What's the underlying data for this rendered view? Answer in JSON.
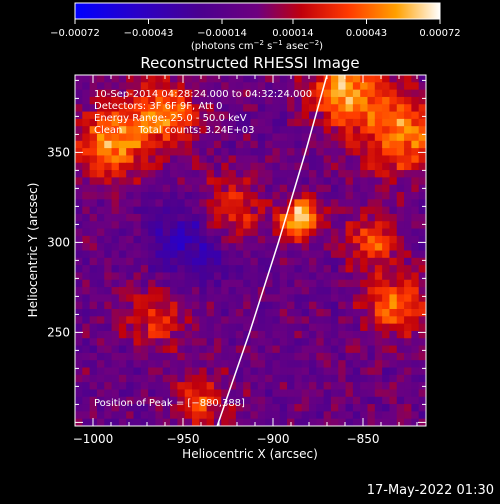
{
  "chart_data": {
    "type": "heatmap",
    "title": "Reconstructed RHESSI Image",
    "xlabel": "Heliocentric X (arcsec)",
    "ylabel": "Heliocentric Y (arcsec)",
    "xlim": [
      -1010,
      -815
    ],
    "ylim": [
      198,
      393
    ],
    "x_ticks": [
      {
        "value": -1000,
        "label": "−1000"
      },
      {
        "value": -950,
        "label": "−950"
      },
      {
        "value": -900,
        "label": "−900"
      },
      {
        "value": -850,
        "label": "−850"
      }
    ],
    "y_ticks": [
      {
        "value": 250,
        "label": "250"
      },
      {
        "value": 300,
        "label": "300"
      },
      {
        "value": 350,
        "label": "350"
      }
    ],
    "colorbar": {
      "min": -0.00072,
      "max": 0.00072,
      "ticks": [
        {
          "value": -0.00072,
          "label": "−0.00072"
        },
        {
          "value": -0.00043,
          "label": "−0.00043"
        },
        {
          "value": -0.00014,
          "label": "−0.00014"
        },
        {
          "value": 0.00014,
          "label": "0.00014"
        },
        {
          "value": 0.00043,
          "label": "0.00043"
        },
        {
          "value": 0.00072,
          "label": "0.00072"
        }
      ],
      "units_prefix": "(photons cm",
      "units_exp1": "−2",
      "units_mid": " s",
      "units_exp2": "−1",
      "units_mid2": " asec",
      "units_exp3": "−2",
      "units_suffix": ")"
    },
    "annotations": [
      "10-Sep-2014 04:28:24.000 to 04:32:24.000",
      "Detectors: 3F 6F 9F, Att 0",
      "Energy Range: 25.0 - 50.0 keV",
      "Clean     Total counts: 3.24E+03"
    ],
    "peak_label": "Position of Peak = [−880,388]",
    "peak": {
      "x": -880,
      "y": 388
    },
    "limb_curve": [
      {
        "x": -931,
        "y": 198
      },
      {
        "x": -913,
        "y": 250
      },
      {
        "x": -897,
        "y": 300
      },
      {
        "x": -882,
        "y": 350
      },
      {
        "x": -870,
        "y": 393
      }
    ],
    "sources": [
      {
        "x": -885,
        "y": 313,
        "amp": 0.00072,
        "sigma": 8
      },
      {
        "x": -925,
        "y": 318,
        "amp": 0.00045,
        "sigma": 12
      },
      {
        "x": -990,
        "y": 355,
        "amp": 0.00055,
        "sigma": 14
      },
      {
        "x": -960,
        "y": 372,
        "amp": 0.0005,
        "sigma": 14
      },
      {
        "x": -860,
        "y": 385,
        "amp": 0.0006,
        "sigma": 14
      },
      {
        "x": -828,
        "y": 360,
        "amp": 0.00055,
        "sigma": 16
      },
      {
        "x": -832,
        "y": 265,
        "amp": 0.0005,
        "sigma": 12
      },
      {
        "x": -845,
        "y": 300,
        "amp": 0.00045,
        "sigma": 10
      },
      {
        "x": -940,
        "y": 212,
        "amp": 0.0004,
        "sigma": 10
      },
      {
        "x": -965,
        "y": 258,
        "amp": 0.00035,
        "sigma": 12
      },
      {
        "x": -945,
        "y": 300,
        "amp": -0.00035,
        "sigma": 16
      }
    ],
    "grid_cells": 48,
    "grid": false
  },
  "footer": {
    "timestamp": "17-May-2022 01:30"
  }
}
